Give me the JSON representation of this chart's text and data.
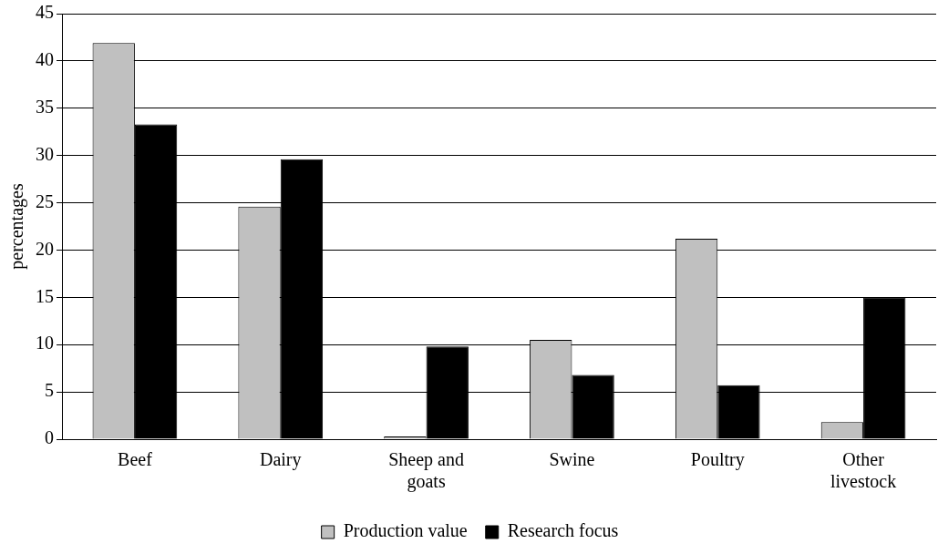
{
  "chart_data": {
    "type": "bar",
    "ylabel": "percentages",
    "categories": [
      "Beef",
      "Dairy",
      "Sheep and goats",
      "Swine",
      "Poultry",
      "Other livestock"
    ],
    "series": [
      {
        "name": "Production value",
        "color": "#c0c0c0",
        "values": [
          41.9,
          24.6,
          0.3,
          10.5,
          21.2,
          1.8
        ]
      },
      {
        "name": "Research focus",
        "color": "#000000",
        "values": [
          33.3,
          29.6,
          9.8,
          6.8,
          5.7,
          15.0
        ]
      }
    ],
    "ylim": [
      0,
      45
    ],
    "yticks": [
      0,
      5,
      10,
      15,
      20,
      25,
      30,
      35,
      40,
      45
    ],
    "grid": "y",
    "legend": "bottom"
  }
}
